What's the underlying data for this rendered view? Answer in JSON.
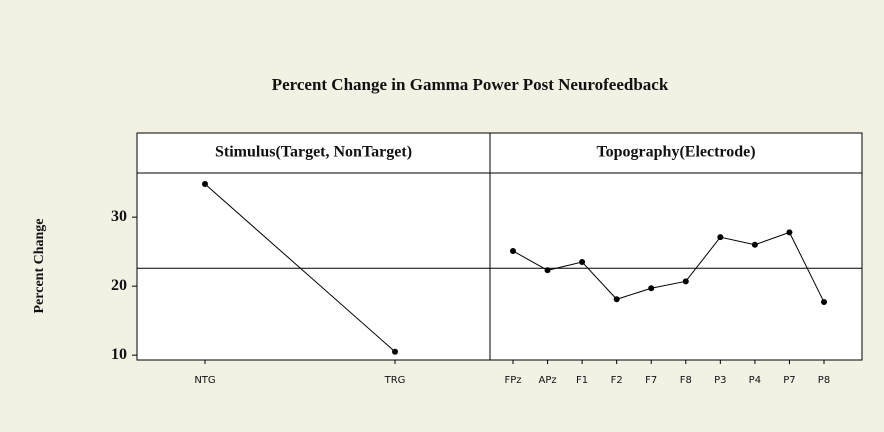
{
  "chart_data": {
    "type": "line",
    "title": "Percent Change in Gamma Power Post Neurofeedback",
    "ylabel": "Percent Change",
    "ylim": [
      9.3,
      36.4
    ],
    "yticks": [
      10,
      20,
      30
    ],
    "reference_line": 22.6,
    "color": "#000000",
    "panels": [
      {
        "title": "Stimulus(Target, NonTarget)",
        "categories": [
          "NTG",
          "TRG"
        ],
        "values": [
          34.8,
          10.5
        ]
      },
      {
        "title": "Topography(Electrode)",
        "categories": [
          "FPz",
          "APz",
          "F1",
          "F2",
          "F7",
          "F8",
          "P3",
          "P4",
          "P7",
          "P8"
        ],
        "values": [
          25.1,
          22.3,
          23.5,
          18.1,
          19.7,
          20.7,
          27.1,
          26.0,
          27.8,
          17.7
        ]
      }
    ]
  }
}
